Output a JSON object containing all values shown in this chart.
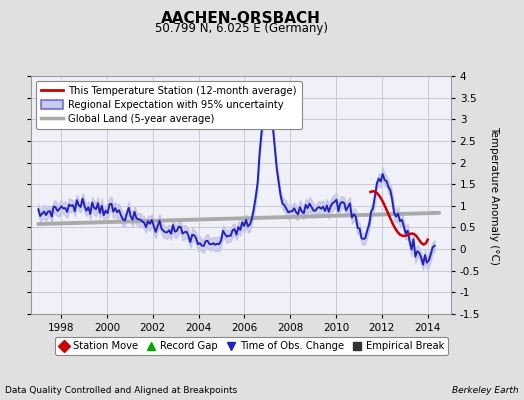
{
  "title": "AACHEN-ORSBACH",
  "subtitle": "50.799 N, 6.025 E (Germany)",
  "ylabel": "Temperature Anomaly (°C)",
  "footer_left": "Data Quality Controlled and Aligned at Breakpoints",
  "footer_right": "Berkeley Earth",
  "xlim": [
    1996.7,
    2015.0
  ],
  "ylim": [
    -1.5,
    4.0
  ],
  "yticks": [
    -1.5,
    -1.0,
    -0.5,
    0.0,
    0.5,
    1.0,
    1.5,
    2.0,
    2.5,
    3.0,
    3.5,
    4.0
  ],
  "xticks": [
    1998,
    2000,
    2002,
    2004,
    2006,
    2008,
    2010,
    2012,
    2014
  ],
  "bg_color": "#e0e0e0",
  "plot_bg_color": "#f0f0f8",
  "grid_color": "#c8c8d8",
  "station_color": "#cc0000",
  "regional_color": "#2222bb",
  "regional_band_color": "#9999dd",
  "global_color": "#aaaaaa",
  "station_lw": 1.8,
  "regional_lw": 1.4,
  "global_lw": 2.8,
  "legend1_labels": [
    "This Temperature Station (12-month average)",
    "Regional Expectation with 95% uncertainty",
    "Global Land (5-year average)"
  ],
  "legend2_items": [
    {
      "label": "Station Move",
      "color": "#cc0000",
      "marker": "D"
    },
    {
      "label": "Record Gap",
      "color": "#00aa00",
      "marker": "^"
    },
    {
      "label": "Time of Obs. Change",
      "color": "#2222bb",
      "marker": "v"
    },
    {
      "label": "Empirical Break",
      "color": "#333333",
      "marker": "s"
    }
  ]
}
